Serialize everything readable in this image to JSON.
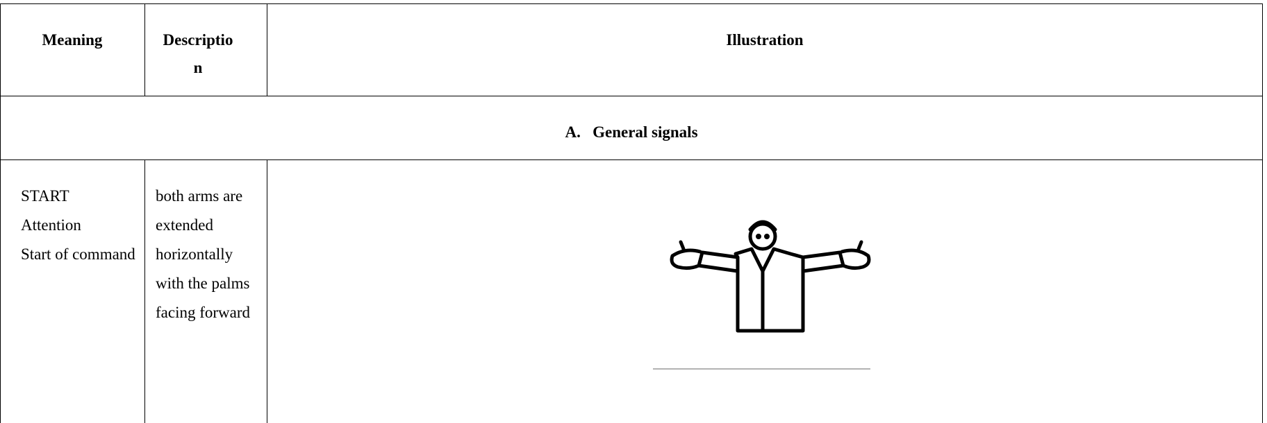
{
  "table": {
    "header": [
      "Meaning",
      "Description",
      "Illustration"
    ],
    "section": "A.   General signals",
    "rows": [
      {
        "meaning": [
          "START",
          "Attention",
          "Start of command"
        ],
        "description": "both arms are extended horizontally with the palms facing forward"
      }
    ]
  }
}
